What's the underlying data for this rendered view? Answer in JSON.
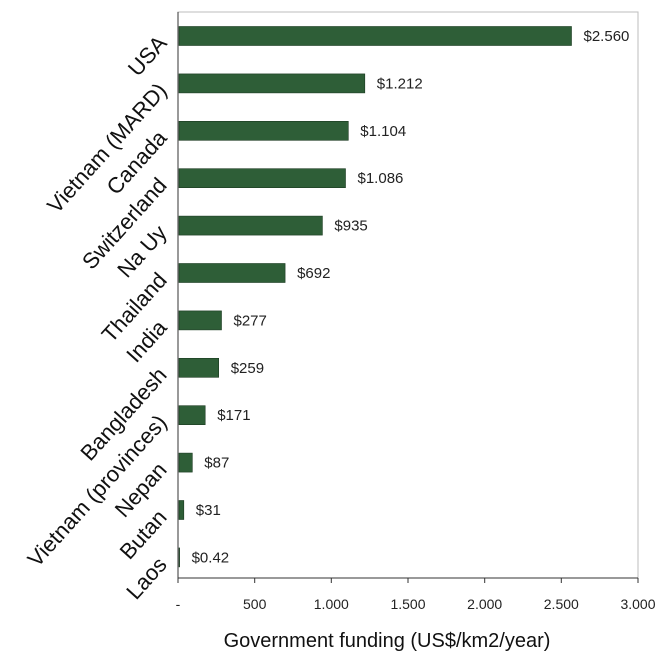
{
  "chart_data": {
    "type": "bar",
    "orientation": "horizontal",
    "categories": [
      "USA",
      "Vietnam (MARD)",
      "Canada",
      "Switzerland",
      "Na Uy",
      "Thailand",
      "India",
      "Bangladesh",
      "Vietnam (provinces)",
      "Nepan",
      "Butan",
      "Laos"
    ],
    "values": [
      2560,
      1212,
      1104,
      1086,
      935,
      692,
      277,
      259,
      171,
      87,
      31,
      0.42
    ],
    "data_labels": [
      "$2.560",
      "$1.212",
      "$1.104",
      "$1.086",
      "$935",
      "$692",
      "$277",
      "$259",
      "$171",
      "$87",
      "$31",
      "$0.42"
    ],
    "title": "",
    "xlabel": "Government funding (US$/km2/year)",
    "ylabel": "",
    "xlim": [
      0,
      3000
    ],
    "x_ticks": [
      0,
      500,
      1000,
      1500,
      2000,
      2500,
      3000
    ],
    "x_tick_labels": [
      "-",
      "500",
      "1.000",
      "1.500",
      "2.000",
      "2.500",
      "3.000"
    ],
    "grid": false,
    "legend": "none",
    "bar_color": "#2e5e37"
  }
}
